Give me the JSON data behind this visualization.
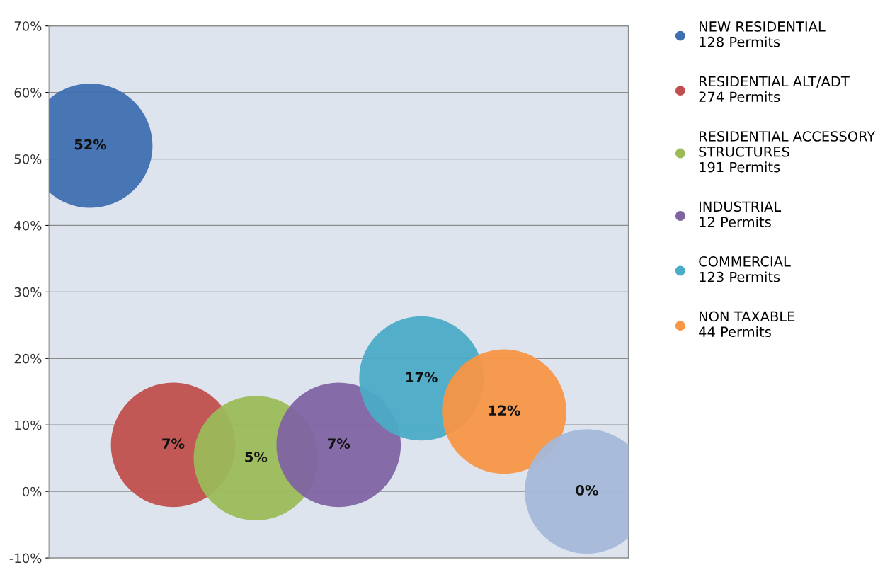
{
  "chart_data": {
    "type": "bubble",
    "categories": [
      null,
      null,
      null,
      null,
      null,
      null,
      null
    ],
    "series": [
      {
        "name": "NEW RESIDENTIAL\n128 Permits",
        "color": "#3f6fb0",
        "values": [
          52,
          null,
          null,
          null,
          null,
          null,
          null
        ],
        "sizes": [
          1,
          null,
          null,
          null,
          null,
          null,
          null
        ],
        "value_labels": [
          "52%",
          null,
          null,
          null,
          null,
          null,
          null
        ]
      },
      {
        "name": "RESIDENTIAL ALT/ADT\n274 Permits",
        "color": "#c0504d",
        "values": [
          null,
          7,
          null,
          null,
          null,
          null,
          null
        ],
        "sizes": [
          null,
          1,
          null,
          null,
          null,
          null,
          null
        ],
        "value_labels": [
          null,
          "7%",
          null,
          null,
          null,
          null,
          null
        ]
      },
      {
        "name": "RESIDENTIAL ACCESSORY\nSTRUCTURES\n191 Permits",
        "color": "#9bbb59",
        "values": [
          null,
          null,
          5,
          null,
          null,
          null,
          null
        ],
        "sizes": [
          null,
          null,
          1,
          null,
          null,
          null,
          null
        ],
        "value_labels": [
          null,
          null,
          "5%",
          null,
          null,
          null,
          null
        ]
      },
      {
        "name": "INDUSTRIAL\n12 Permits",
        "color": "#8064a2",
        "values": [
          null,
          null,
          null,
          7,
          null,
          null,
          null
        ],
        "sizes": [
          null,
          null,
          null,
          1,
          null,
          null,
          null
        ],
        "value_labels": [
          null,
          null,
          null,
          "7%",
          null,
          null,
          null
        ]
      },
      {
        "name": "COMMERCIAL\n123 Permits",
        "color": "#4bacc6",
        "values": [
          null,
          null,
          null,
          null,
          17,
          null,
          null
        ],
        "sizes": [
          null,
          null,
          null,
          null,
          1,
          null,
          null
        ],
        "value_labels": [
          null,
          null,
          null,
          null,
          "17%",
          null,
          null
        ]
      },
      {
        "name": "NON TAXABLE\n44 Permits",
        "color": "#f79646",
        "values": [
          null,
          null,
          null,
          null,
          null,
          12,
          null
        ],
        "sizes": [
          null,
          null,
          null,
          null,
          null,
          1,
          null
        ],
        "value_labels": [
          null,
          null,
          null,
          null,
          null,
          "12%",
          null
        ]
      },
      {
        "color": "#a5b8d8",
        "values": [
          null,
          null,
          null,
          null,
          null,
          null,
          0
        ],
        "sizes": [
          null,
          null,
          null,
          null,
          null,
          null,
          1
        ],
        "value_labels": [
          null,
          null,
          null,
          null,
          null,
          null,
          "0%"
        ]
      }
    ],
    "ylim": [
      -10,
      70
    ],
    "yticks": [
      {
        "value": -10,
        "label": "-10%"
      },
      {
        "value": 0,
        "label": "0%"
      },
      {
        "value": 10,
        "label": "10%"
      },
      {
        "value": 20,
        "label": "20%"
      },
      {
        "value": 30,
        "label": "30%"
      },
      {
        "value": 40,
        "label": "40%"
      },
      {
        "value": 50,
        "label": "50%"
      },
      {
        "value": 60,
        "label": "60%"
      },
      {
        "value": 70,
        "label": "70%"
      }
    ],
    "grid": "y",
    "legend": "right"
  }
}
